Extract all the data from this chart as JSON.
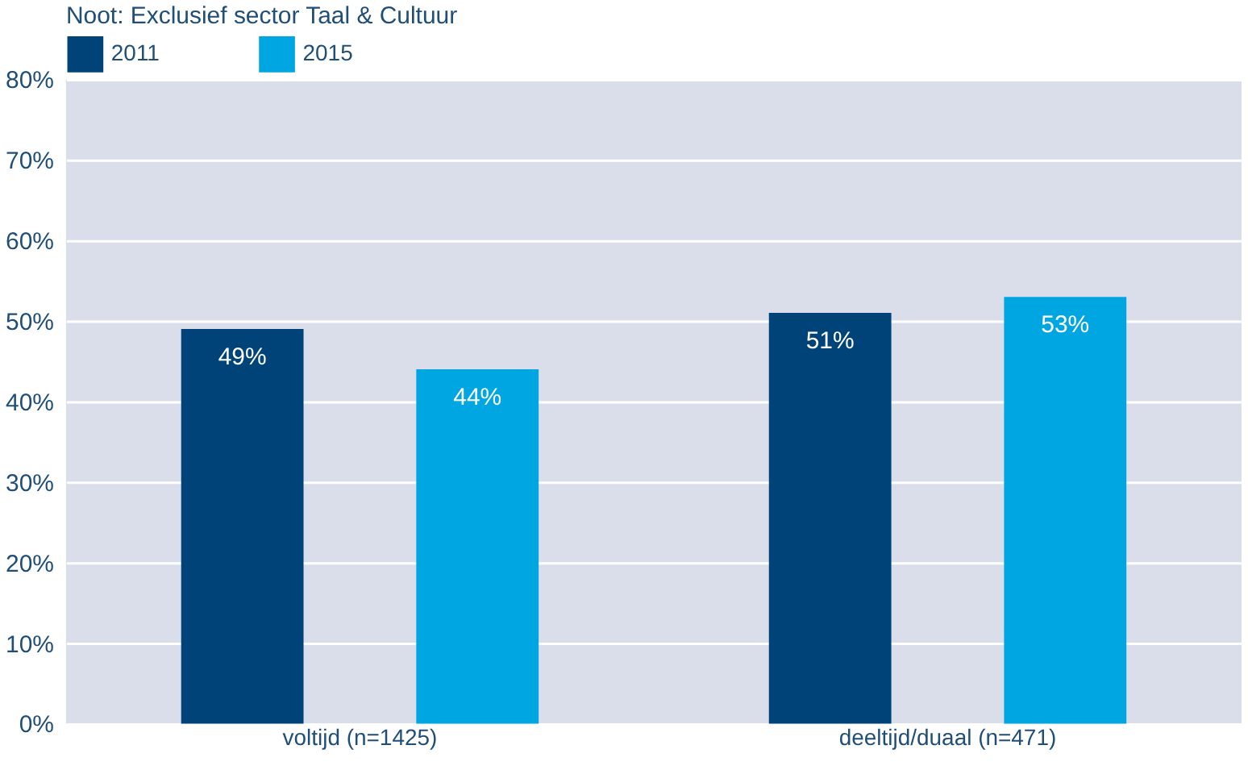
{
  "chart_data": {
    "type": "bar",
    "annotations": [
      "Noot: Exclusief sector Taal & Cultuur"
    ],
    "categories": [
      "voltijd (n=1425)",
      "deeltijd/duaal (n=471)"
    ],
    "series": [
      {
        "name": "2011",
        "color": "#004379",
        "values": [
          49,
          51
        ]
      },
      {
        "name": "2015",
        "color": "#00a6e2",
        "values": [
          44,
          53
        ]
      }
    ],
    "ylim": [
      0,
      80
    ],
    "yticks": [
      {
        "value": 0,
        "label": "0%"
      },
      {
        "value": 10,
        "label": "10%"
      },
      {
        "value": 20,
        "label": "20%"
      },
      {
        "value": 30,
        "label": "30%"
      },
      {
        "value": 40,
        "label": "40%"
      },
      {
        "value": 50,
        "label": "50%"
      },
      {
        "value": 60,
        "label": "60%"
      },
      {
        "value": 70,
        "label": "70%"
      },
      {
        "value": 80,
        "label": "80%"
      }
    ],
    "value_labels": [
      "49%",
      "51%",
      "44%",
      "53%"
    ],
    "grid": "y",
    "legend": "top left"
  }
}
